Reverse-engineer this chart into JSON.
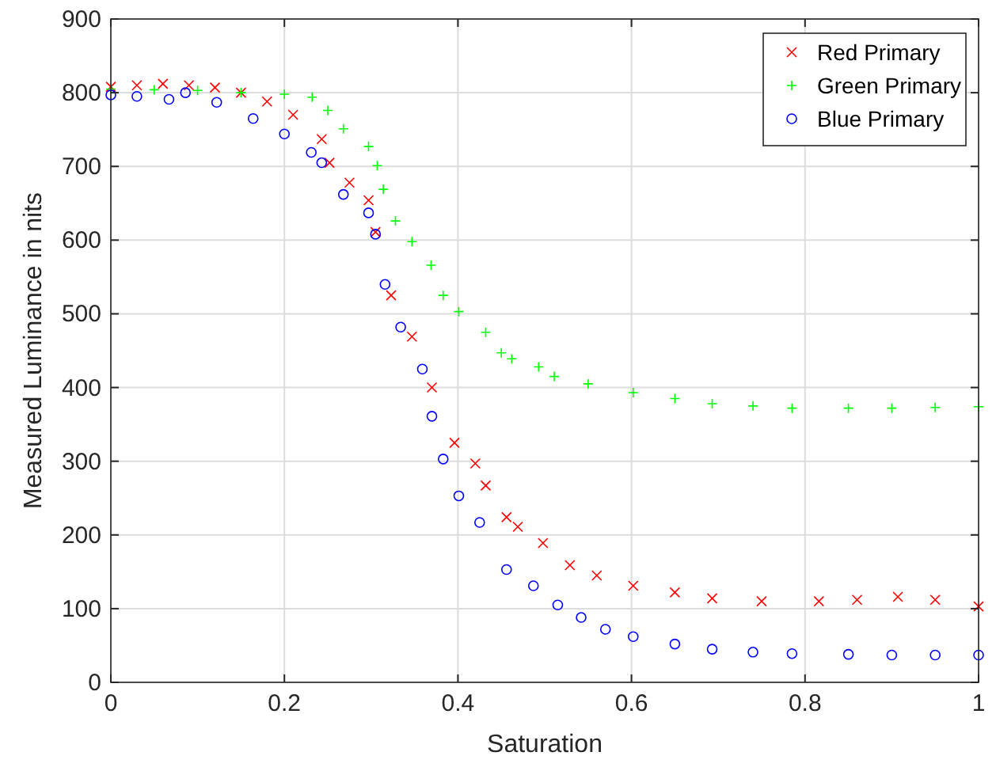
{
  "chart_data": {
    "type": "scatter",
    "xlabel": "Saturation",
    "ylabel": "Measured Luminance in nits",
    "xlim": [
      0,
      1
    ],
    "xticks": [
      0,
      0.2,
      0.4,
      0.6,
      0.8,
      1
    ],
    "ylim": [
      0,
      900
    ],
    "yticks": [
      0,
      100,
      200,
      300,
      400,
      500,
      600,
      700,
      800,
      900
    ],
    "grid": true,
    "legend": "top right",
    "series": [
      {
        "name": "Red Primary",
        "color": "#ff0000",
        "marker": "x",
        "x": [
          0,
          0.03,
          0.06,
          0.09,
          0.12,
          0.15,
          0.18,
          0.21,
          0.243,
          0.252,
          0.275,
          0.297,
          0.305,
          0.323,
          0.347,
          0.37,
          0.396,
          0.42,
          0.432,
          0.456,
          0.469,
          0.498,
          0.529,
          0.56,
          0.602,
          0.65,
          0.693,
          0.75,
          0.816,
          0.86,
          0.907,
          0.95,
          1.0
        ],
        "values": [
          808,
          810,
          812,
          810,
          807,
          800,
          788,
          770,
          737,
          705,
          678,
          654,
          611,
          525,
          469,
          400,
          325,
          297,
          267,
          224,
          211,
          189,
          159,
          145,
          131,
          122,
          114,
          110,
          110,
          112,
          116,
          112,
          103
        ]
      },
      {
        "name": "Green Primary",
        "color": "#00ff00",
        "marker": "cross",
        "x": [
          0,
          0.05,
          0.1,
          0.15,
          0.2,
          0.232,
          0.25,
          0.268,
          0.297,
          0.307,
          0.314,
          0.328,
          0.347,
          0.369,
          0.383,
          0.401,
          0.432,
          0.45,
          0.462,
          0.493,
          0.511,
          0.55,
          0.602,
          0.65,
          0.693,
          0.74,
          0.785,
          0.85,
          0.9,
          0.95,
          1.0
        ],
        "values": [
          805,
          804,
          803,
          800,
          798,
          794,
          776,
          751,
          727,
          701,
          669,
          626,
          598,
          566,
          525,
          503,
          475,
          447,
          439,
          428,
          415,
          405,
          393,
          385,
          378,
          375,
          372,
          372,
          372,
          373,
          374
        ]
      },
      {
        "name": "Blue Primary",
        "color": "#0000ff",
        "marker": "circle",
        "x": [
          0,
          0.03,
          0.067,
          0.086,
          0.122,
          0.164,
          0.2,
          0.231,
          0.243,
          0.268,
          0.297,
          0.305,
          0.316,
          0.334,
          0.359,
          0.37,
          0.383,
          0.401,
          0.425,
          0.456,
          0.487,
          0.515,
          0.542,
          0.57,
          0.602,
          0.65,
          0.693,
          0.74,
          0.785,
          0.85,
          0.9,
          0.95,
          1.0
        ],
        "values": [
          797,
          795,
          791,
          800,
          787,
          765,
          744,
          719,
          705,
          662,
          637,
          608,
          540,
          482,
          425,
          361,
          303,
          253,
          217,
          153,
          131,
          105,
          88,
          72,
          62,
          52,
          45,
          41,
          39,
          38,
          37,
          37,
          37
        ]
      }
    ]
  }
}
